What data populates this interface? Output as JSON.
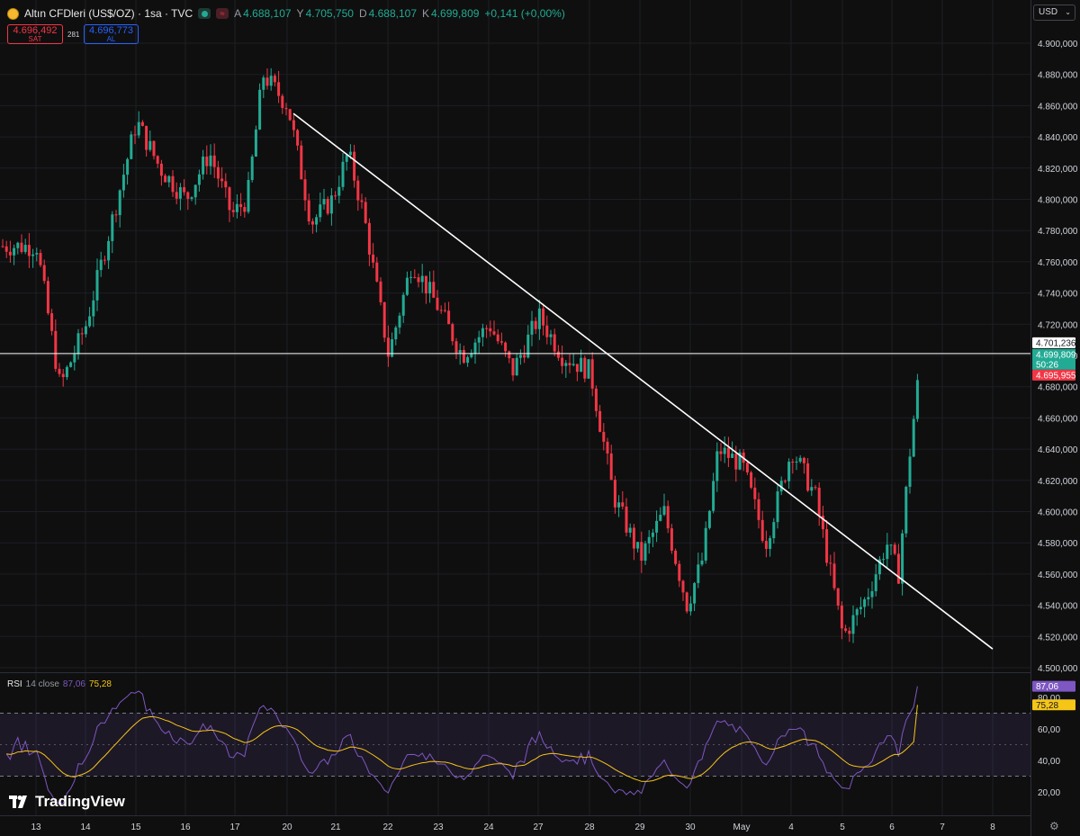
{
  "header": {
    "symbol": "Altın CFDleri (US$/OZ) · 1sa · TVC",
    "open_label": "A",
    "open": "4.688,107",
    "high_label": "Y",
    "high": "4.705,750",
    "low_label": "D",
    "low": "4.688,107",
    "close_label": "K",
    "close": "4.699,809",
    "change": "+0,141 (+0,00%)"
  },
  "quote": {
    "sell_price": "4.696,492",
    "sell_label": "SAT",
    "spread": "281",
    "buy_price": "4.696,773",
    "buy_label": "AL"
  },
  "currency": "USD",
  "price_scale": {
    "ticks": [
      "4.900,000",
      "4.880,000",
      "4.860,000",
      "4.840,000",
      "4.820,000",
      "4.800,000",
      "4.780,000",
      "4.760,000",
      "4.740,000",
      "4.720,000",
      "4.700,000",
      "4.680,000",
      "4.660,000",
      "4.640,000",
      "4.620,000",
      "4.600,000",
      "4.580,000",
      "4.560,000",
      "4.540,000",
      "4.520,000",
      "4.500,000"
    ],
    "hline_label": "4.701,236",
    "last_price": "4.699,809",
    "countdown": "50:26",
    "bid_label": "4.695,955"
  },
  "rsi": {
    "name": "RSI",
    "params": "14 close",
    "value": "87,06",
    "ma_value": "75,28",
    "ticks": [
      "80,00",
      "60,00",
      "40,00",
      "20,00"
    ]
  },
  "time_axis": [
    "13",
    "14",
    "15",
    "16",
    "17",
    "20",
    "21",
    "22",
    "23",
    "24",
    "27",
    "28",
    "29",
    "30",
    "May",
    "4",
    "5",
    "6",
    "7",
    "8"
  ],
  "logo_text": "TradingView",
  "colors": {
    "up": "#22ab94",
    "down": "#f23645",
    "rsi": "#7e57c2",
    "rsi_ma": "#f5c518",
    "trendline": "#ffffff",
    "background": "#0f0f0f"
  },
  "chart_data": {
    "type": "candlestick",
    "title": "Altın CFDleri (US$/OZ) · 1sa · TVC",
    "y_range": [
      4500,
      4900
    ],
    "hline": 4701.236,
    "trendline": {
      "from": [
        "20",
        4855
      ],
      "to": [
        "8",
        4512
      ]
    },
    "price_path": [
      [
        "13",
        4770
      ],
      [
        "13",
        4680
      ],
      [
        "14",
        4720
      ],
      [
        "14",
        4780
      ],
      [
        "15",
        4850
      ],
      [
        "15",
        4820
      ],
      [
        "16",
        4800
      ],
      [
        "16",
        4830
      ],
      [
        "17",
        4790
      ],
      [
        "17",
        4800
      ],
      [
        "17",
        4880
      ],
      [
        "20",
        4860
      ],
      [
        "20",
        4785
      ],
      [
        "21",
        4800
      ],
      [
        "21",
        4830
      ],
      [
        "21",
        4790
      ],
      [
        "22",
        4700
      ],
      [
        "22",
        4760
      ],
      [
        "23",
        4730
      ],
      [
        "23",
        4700
      ],
      [
        "24",
        4720
      ],
      [
        "24",
        4690
      ],
      [
        "27",
        4725
      ],
      [
        "27",
        4700
      ],
      [
        "28",
        4690
      ],
      [
        "28",
        4610
      ],
      [
        "29",
        4570
      ],
      [
        "29",
        4600
      ],
      [
        "30",
        4540
      ],
      [
        "30",
        4570
      ],
      [
        "30",
        4640
      ],
      [
        "May",
        4630
      ],
      [
        "May",
        4580
      ],
      [
        "4",
        4640
      ],
      [
        "4",
        4610
      ],
      [
        "5",
        4520
      ],
      [
        "5",
        4545
      ],
      [
        "6",
        4580
      ],
      [
        "6",
        4560
      ],
      [
        "6",
        4640
      ],
      [
        "6",
        4705
      ]
    ],
    "rsi_values": [
      87.06
    ],
    "rsi_ma_values": [
      75.28
    ],
    "rsi_bands": [
      70,
      30
    ]
  }
}
